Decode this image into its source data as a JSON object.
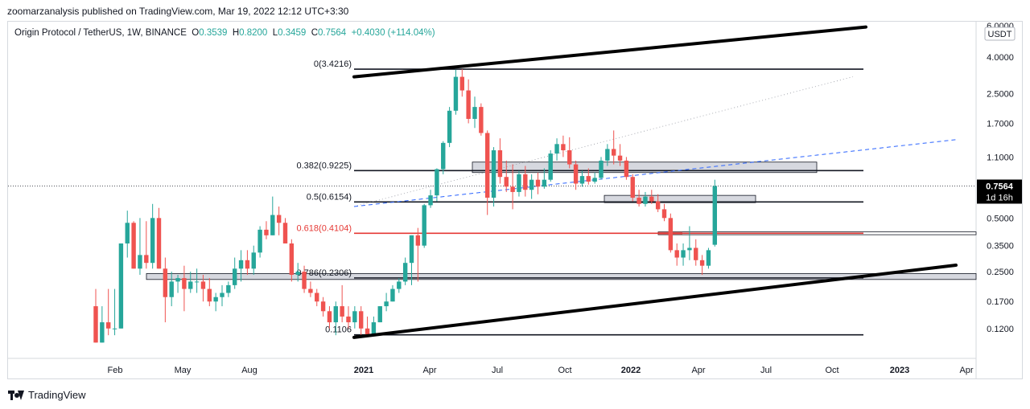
{
  "header": {
    "published": "zoomarzanalysis published on TradingView.com, Mar 19, 2022 12:12 UTC+3:30"
  },
  "legend": {
    "symbol": "Origin Protocol / TetherUS, 1W, BINANCE",
    "open_label": "O",
    "open": "0.3539",
    "high_label": "H",
    "high": "0.8200",
    "low_label": "L",
    "low": "0.3459",
    "close_label": "C",
    "close": "0.7564",
    "change": "+0.4030 (+114.04%)"
  },
  "footer": {
    "brand": "TradingView"
  },
  "colors": {
    "up": "#26a69a",
    "down": "#ef5350",
    "fib618": "#e53935",
    "dashed": "#2962ff"
  },
  "chart_data": {
    "type": "candlestick",
    "x_axis": {
      "labels": [
        {
          "label": "Feb",
          "bold": false
        },
        {
          "label": "May",
          "bold": false
        },
        {
          "label": "Aug",
          "bold": false
        },
        {
          "label": "2021",
          "bold": true
        },
        {
          "label": "Apr",
          "bold": false
        },
        {
          "label": "Jul",
          "bold": false
        },
        {
          "label": "Oct",
          "bold": false
        },
        {
          "label": "2022",
          "bold": true
        },
        {
          "label": "Apr",
          "bold": false
        },
        {
          "label": "Jul",
          "bold": false
        },
        {
          "label": "Oct",
          "bold": false
        },
        {
          "label": "2023",
          "bold": true
        },
        {
          "label": "Apr",
          "bold": false
        }
      ]
    },
    "y_axis": {
      "currency": "USDT",
      "scale": "log",
      "ylim": [
        0.085,
        6.0
      ],
      "ticks": [
        "6.0000",
        "4.0000",
        "2.5000",
        "1.7000",
        "1.1000",
        "0.5000",
        "0.3500",
        "0.2500",
        "0.1700",
        "0.1200"
      ]
    },
    "current_price": {
      "value": 0.7564,
      "label": "0.7564",
      "countdown": "1d 16h"
    },
    "fib_levels": [
      {
        "ratio": "0",
        "price": 3.4216,
        "label": "0(3.4216)",
        "color": "#131722"
      },
      {
        "ratio": "0.382",
        "price": 0.9225,
        "label": "0.382(0.9225)",
        "color": "#131722"
      },
      {
        "ratio": "0.5",
        "price": 0.6154,
        "label": "0.5(0.6154)",
        "color": "#131722"
      },
      {
        "ratio": "0.618",
        "price": 0.4104,
        "label": "0.618(0.4104)",
        "color": "#e53935"
      },
      {
        "ratio": "0.786",
        "price": 0.2306,
        "label": "0.786(0.2306)",
        "color": "#131722"
      },
      {
        "ratio": "1",
        "price": 0.1106,
        "label": "0.1106",
        "color": "#131722"
      }
    ],
    "candles": [
      [
        0.16,
        0.2,
        0.1,
        0.1
      ],
      [
        0.1,
        0.16,
        0.1,
        0.13
      ],
      [
        0.13,
        0.2,
        0.11,
        0.12
      ],
      [
        0.12,
        0.2,
        0.11,
        0.12
      ],
      [
        0.12,
        0.36,
        0.12,
        0.36
      ],
      [
        0.36,
        0.55,
        0.3,
        0.47
      ],
      [
        0.47,
        0.48,
        0.26,
        0.26
      ],
      [
        0.26,
        0.5,
        0.24,
        0.31
      ],
      [
        0.31,
        0.48,
        0.26,
        0.28
      ],
      [
        0.28,
        0.6,
        0.26,
        0.5
      ],
      [
        0.5,
        0.57,
        0.26,
        0.26
      ],
      [
        0.26,
        0.3,
        0.13,
        0.18
      ],
      [
        0.18,
        0.25,
        0.16,
        0.22
      ],
      [
        0.22,
        0.24,
        0.19,
        0.23
      ],
      [
        0.23,
        0.27,
        0.15,
        0.2
      ],
      [
        0.2,
        0.25,
        0.19,
        0.22
      ],
      [
        0.22,
        0.26,
        0.19,
        0.22
      ],
      [
        0.22,
        0.24,
        0.17,
        0.2
      ],
      [
        0.2,
        0.23,
        0.16,
        0.17
      ],
      [
        0.17,
        0.19,
        0.15,
        0.18
      ],
      [
        0.18,
        0.21,
        0.16,
        0.19
      ],
      [
        0.19,
        0.22,
        0.18,
        0.21
      ],
      [
        0.21,
        0.3,
        0.2,
        0.26
      ],
      [
        0.26,
        0.33,
        0.22,
        0.29
      ],
      [
        0.29,
        0.33,
        0.24,
        0.26
      ],
      [
        0.26,
        0.35,
        0.24,
        0.32
      ],
      [
        0.32,
        0.45,
        0.3,
        0.43
      ],
      [
        0.43,
        0.48,
        0.38,
        0.4
      ],
      [
        0.4,
        0.66,
        0.4,
        0.52
      ],
      [
        0.52,
        0.58,
        0.4,
        0.47
      ],
      [
        0.47,
        0.5,
        0.36,
        0.36
      ],
      [
        0.36,
        0.38,
        0.22,
        0.24
      ],
      [
        0.24,
        0.28,
        0.22,
        0.25
      ],
      [
        0.25,
        0.27,
        0.19,
        0.2
      ],
      [
        0.2,
        0.22,
        0.18,
        0.19
      ],
      [
        0.19,
        0.2,
        0.16,
        0.17
      ],
      [
        0.17,
        0.18,
        0.14,
        0.15
      ],
      [
        0.15,
        0.16,
        0.12,
        0.13
      ],
      [
        0.13,
        0.17,
        0.11,
        0.16
      ],
      [
        0.16,
        0.21,
        0.13,
        0.14
      ],
      [
        0.14,
        0.16,
        0.12,
        0.13
      ],
      [
        0.13,
        0.16,
        0.12,
        0.15
      ],
      [
        0.15,
        0.16,
        0.11,
        0.12
      ],
      [
        0.12,
        0.14,
        0.11,
        0.11
      ],
      [
        0.11,
        0.14,
        0.11,
        0.13
      ],
      [
        0.13,
        0.16,
        0.13,
        0.16
      ],
      [
        0.16,
        0.19,
        0.15,
        0.17
      ],
      [
        0.17,
        0.21,
        0.17,
        0.2
      ],
      [
        0.2,
        0.23,
        0.19,
        0.22
      ],
      [
        0.22,
        0.3,
        0.21,
        0.28
      ],
      [
        0.28,
        0.4,
        0.21,
        0.4
      ],
      [
        0.4,
        0.44,
        0.22,
        0.35
      ],
      [
        0.35,
        0.6,
        0.34,
        0.59
      ],
      [
        0.59,
        0.72,
        0.57,
        0.67
      ],
      [
        0.67,
        0.95,
        0.62,
        0.94
      ],
      [
        0.94,
        1.35,
        0.88,
        1.32
      ],
      [
        1.32,
        2.1,
        1.25,
        2.0
      ],
      [
        2.0,
        3.4,
        1.9,
        3.1
      ],
      [
        3.1,
        3.42,
        2.4,
        2.6
      ],
      [
        2.6,
        3.0,
        1.7,
        1.8
      ],
      [
        1.8,
        2.4,
        1.6,
        2.1
      ],
      [
        2.1,
        2.2,
        1.45,
        1.5
      ],
      [
        1.5,
        1.55,
        0.52,
        0.65
      ],
      [
        0.65,
        1.25,
        0.58,
        1.2
      ],
      [
        1.2,
        1.4,
        0.78,
        0.85
      ],
      [
        0.85,
        1.05,
        0.7,
        0.75
      ],
      [
        0.75,
        1.0,
        0.56,
        0.7
      ],
      [
        0.7,
        0.92,
        0.66,
        0.88
      ],
      [
        0.88,
        0.98,
        0.66,
        0.72
      ],
      [
        0.72,
        0.88,
        0.64,
        0.82
      ],
      [
        0.82,
        0.9,
        0.68,
        0.75
      ],
      [
        0.75,
        0.95,
        0.73,
        0.82
      ],
      [
        0.82,
        1.2,
        0.8,
        1.15
      ],
      [
        1.15,
        1.4,
        1.05,
        1.3
      ],
      [
        1.3,
        1.45,
        1.1,
        1.2
      ],
      [
        1.2,
        1.42,
        0.95,
        1.0
      ],
      [
        1.0,
        1.05,
        0.72,
        0.78
      ],
      [
        0.78,
        0.92,
        0.75,
        0.86
      ],
      [
        0.86,
        0.95,
        0.77,
        0.8
      ],
      [
        0.8,
        0.9,
        0.78,
        0.84
      ],
      [
        0.84,
        1.1,
        0.82,
        1.05
      ],
      [
        1.05,
        1.3,
        0.98,
        1.22
      ],
      [
        1.22,
        1.55,
        1.0,
        1.12
      ],
      [
        1.12,
        1.3,
        0.98,
        1.05
      ],
      [
        1.05,
        1.1,
        0.82,
        0.85
      ],
      [
        0.85,
        0.88,
        0.62,
        0.65
      ],
      [
        0.65,
        0.72,
        0.58,
        0.6
      ],
      [
        0.6,
        0.7,
        0.58,
        0.66
      ],
      [
        0.66,
        0.72,
        0.6,
        0.62
      ],
      [
        0.62,
        0.68,
        0.54,
        0.56
      ],
      [
        0.56,
        0.6,
        0.48,
        0.5
      ],
      [
        0.5,
        0.53,
        0.32,
        0.33
      ],
      [
        0.33,
        0.36,
        0.27,
        0.3
      ],
      [
        0.3,
        0.36,
        0.27,
        0.33
      ],
      [
        0.33,
        0.45,
        0.29,
        0.34
      ],
      [
        0.34,
        0.38,
        0.27,
        0.29
      ],
      [
        0.29,
        0.31,
        0.24,
        0.27
      ],
      [
        0.27,
        0.34,
        0.26,
        0.33
      ],
      [
        0.3539,
        0.82,
        0.3459,
        0.7564
      ]
    ]
  }
}
